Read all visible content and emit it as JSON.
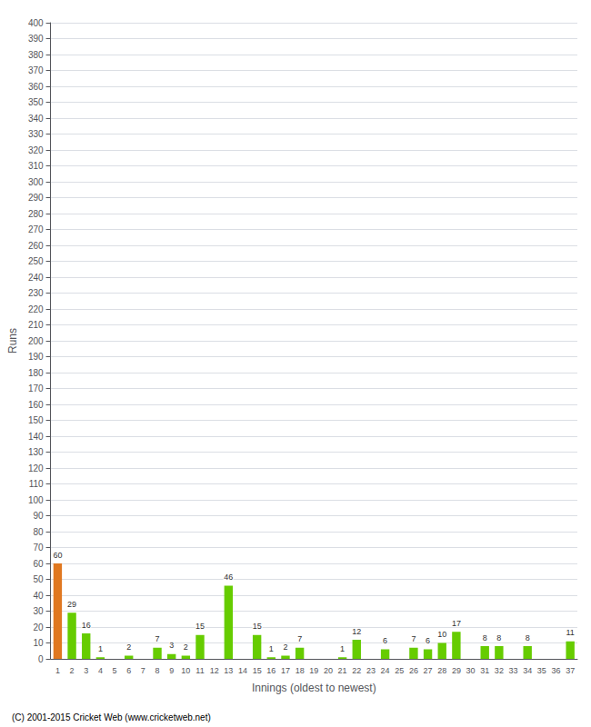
{
  "chart_data": {
    "type": "bar",
    "xlabel": "Innings (oldest to newest)",
    "ylabel": "Runs",
    "categories": [
      "1",
      "2",
      "3",
      "4",
      "5",
      "6",
      "7",
      "8",
      "9",
      "10",
      "11",
      "12",
      "13",
      "14",
      "15",
      "16",
      "17",
      "18",
      "19",
      "20",
      "21",
      "22",
      "23",
      "24",
      "25",
      "26",
      "27",
      "28",
      "29",
      "30",
      "31",
      "32",
      "33",
      "34",
      "35",
      "36",
      "37"
    ],
    "values": [
      60,
      29,
      16,
      1,
      0,
      2,
      0,
      7,
      3,
      2,
      15,
      0,
      46,
      0,
      15,
      1,
      2,
      7,
      0,
      0,
      1,
      12,
      0,
      6,
      0,
      7,
      6,
      10,
      17,
      0,
      8,
      8,
      0,
      8,
      0,
      0,
      11
    ],
    "value_labels": [
      "60",
      "29",
      "16",
      "1",
      null,
      "2",
      null,
      "7",
      "3",
      "2",
      "15",
      null,
      "46",
      null,
      "15",
      "1",
      "2",
      "7",
      null,
      null,
      "1",
      "12",
      null,
      "6",
      null,
      "7",
      "6",
      "10",
      "17",
      null,
      "8",
      "8",
      null,
      "8",
      null,
      null,
      "11"
    ],
    "colors": [
      "#e07820",
      "#66cc00",
      "#66cc00",
      "#66cc00",
      "#66cc00",
      "#66cc00",
      "#66cc00",
      "#66cc00",
      "#66cc00",
      "#66cc00",
      "#66cc00",
      "#66cc00",
      "#66cc00",
      "#66cc00",
      "#66cc00",
      "#66cc00",
      "#66cc00",
      "#66cc00",
      "#66cc00",
      "#66cc00",
      "#66cc00",
      "#66cc00",
      "#66cc00",
      "#66cc00",
      "#66cc00",
      "#66cc00",
      "#66cc00",
      "#66cc00",
      "#66cc00",
      "#66cc00",
      "#66cc00",
      "#66cc00",
      "#66cc00",
      "#66cc00",
      "#66cc00",
      "#66cc00",
      "#66cc00"
    ],
    "ylim": [
      0,
      400
    ],
    "yticks": [
      0,
      10,
      20,
      30,
      40,
      50,
      60,
      70,
      80,
      90,
      100,
      110,
      120,
      130,
      140,
      150,
      160,
      170,
      180,
      190,
      200,
      210,
      220,
      230,
      240,
      250,
      260,
      270,
      280,
      290,
      300,
      310,
      320,
      330,
      340,
      350,
      360,
      370,
      380,
      390,
      400
    ],
    "grid": true,
    "annotations": [
      "(C) 2001-2015 Cricket Web (www.cricketweb.net)"
    ]
  }
}
